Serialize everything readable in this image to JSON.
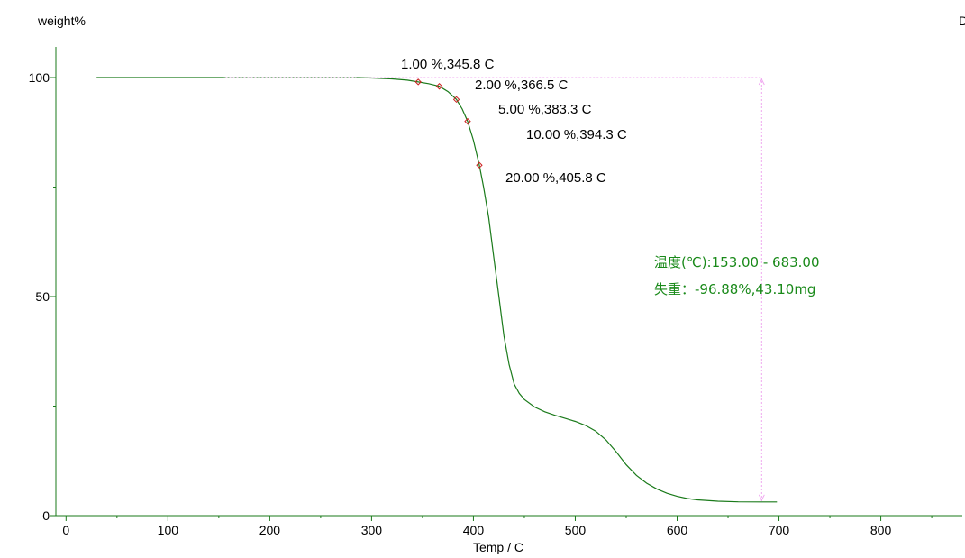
{
  "chart_data": {
    "type": "line",
    "xlabel": "Temp / C",
    "ylabel": "weight%",
    "corner_label": "D",
    "xlim": [
      -10,
      880
    ],
    "ylim": [
      0,
      107
    ],
    "x_ticks": [
      0,
      100,
      200,
      300,
      400,
      500,
      600,
      700,
      800
    ],
    "y_ticks": [
      0,
      50,
      100
    ],
    "grid": false,
    "series": [
      {
        "color": "#1a7a1a",
        "x": [
          30,
          155,
          285,
          300,
          320,
          335,
          345.8,
          356,
          366.5,
          375,
          383.3,
          389,
          394.3,
          400,
          405.8,
          410,
          415,
          420,
          425,
          430,
          435,
          440,
          445,
          450,
          460,
          470,
          480,
          490,
          500,
          510,
          520,
          530,
          540,
          550,
          560,
          570,
          580,
          590,
          600,
          610,
          620,
          640,
          660,
          683,
          698
        ],
        "y": [
          100,
          100,
          100,
          99.9,
          99.7,
          99.4,
          99,
          98.6,
          98,
          96.8,
          95,
          92.8,
          90,
          85.7,
          80,
          75,
          68,
          59,
          50,
          41,
          34.5,
          30,
          27.9,
          26.5,
          24.8,
          23.7,
          22.9,
          22.2,
          21.5,
          20.6,
          19.3,
          17.3,
          14.6,
          11.6,
          9.2,
          7.4,
          6.1,
          5.1,
          4.4,
          3.9,
          3.6,
          3.3,
          3.15,
          3.12,
          3.12
        ]
      }
    ],
    "dashed_segment_x": [
      155,
      285
    ],
    "markers": [
      {
        "x": 345.8,
        "y": 99,
        "label": "1.00 %,345.8 C"
      },
      {
        "x": 366.5,
        "y": 98,
        "label": "2.00 %,366.5 C"
      },
      {
        "x": 383.3,
        "y": 95,
        "label": "5.00 %,383.3 C"
      },
      {
        "x": 394.3,
        "y": 90,
        "label": "10.00 %,394.3 C"
      },
      {
        "x": 405.8,
        "y": 80,
        "label": "20.00 %,405.8 C"
      }
    ],
    "step": {
      "x_start": 153,
      "x_end": 683,
      "y_start": 100,
      "y_end": 3.12,
      "color": "#f0a8f0"
    },
    "annotations": {
      "temperature_range": "温度(℃):153.00 - 683.00",
      "weight_loss": "失重：-96.88%,43.10mg"
    },
    "colors": {
      "curve": "#1a7a1a",
      "axis": "#1a7a1a",
      "marker": "#cc2222",
      "info_text": "#1a8a1a"
    }
  }
}
